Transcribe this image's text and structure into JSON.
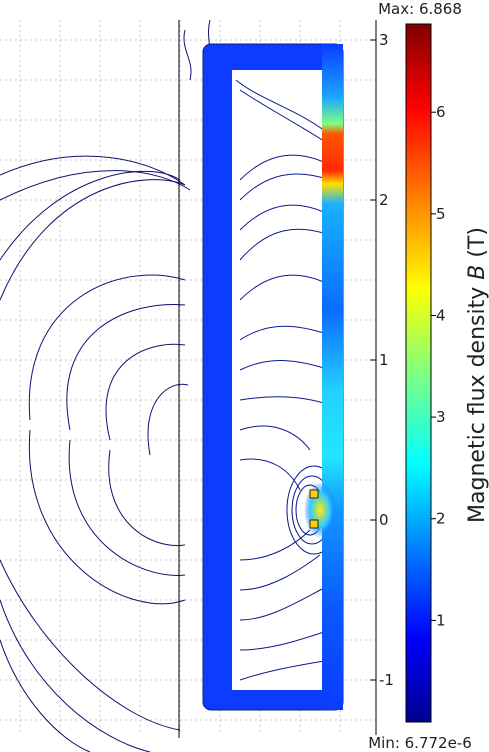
{
  "chart_data": {
    "type": "heatmap",
    "title": "",
    "colorbar": {
      "max_label": "Max: 6.868",
      "min_label": "Min: 6.772e-6",
      "max": 6.868,
      "min": 6.772e-06,
      "ticks": [
        1,
        2,
        3,
        4,
        5,
        6
      ],
      "tick_labels": [
        "1",
        "2",
        "3",
        "4",
        "5",
        "6"
      ],
      "label_prefix": "Magnetic flux density ",
      "label_symbol": "B",
      "label_suffix": " (T)",
      "colormap": [
        "#00008f",
        "#0000ff",
        "#0080ff",
        "#00ffff",
        "#80ff80",
        "#ffff00",
        "#ff8000",
        "#ff0000",
        "#800000"
      ]
    },
    "y_axis": {
      "ticks": [
        3,
        2,
        1,
        0,
        -1
      ],
      "tick_labels": [
        "3",
        "2",
        "1",
        "0",
        "-1"
      ],
      "ylim": [
        -1.3,
        3.2
      ]
    },
    "grid": true
  }
}
